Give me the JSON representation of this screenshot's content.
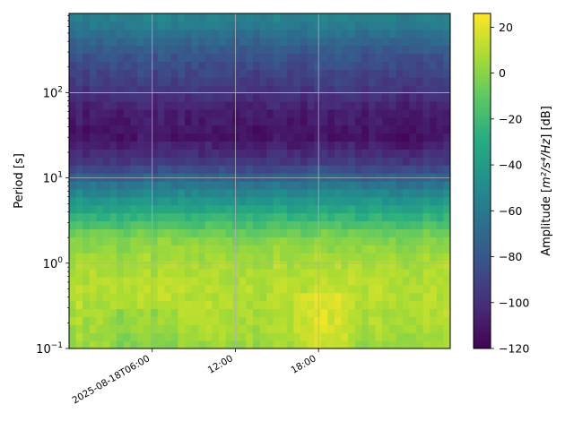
{
  "chart_data": [
    {
      "type": "heatmap",
      "title": "",
      "xlabel": "",
      "ylabel": "Period [s]",
      "y_scale": "log",
      "ylim": [
        0.1,
        850
      ],
      "x_time_range_hours": [
        0,
        27.5
      ],
      "x_ticks": [
        {
          "value": 6,
          "label": "2025-08-18T06:00"
        },
        {
          "value": 12,
          "label": "12:00"
        },
        {
          "value": 18,
          "label": "18:00"
        }
      ],
      "y_ticks": [
        {
          "value": 0.1,
          "base": "10",
          "exp": "−1"
        },
        {
          "value": 1,
          "base": "10",
          "exp": "0"
        },
        {
          "value": 10,
          "base": "10",
          "exp": "1"
        },
        {
          "value": 100,
          "base": "10",
          "exp": "2"
        }
      ],
      "grid": true,
      "colormap": "viridis",
      "colorbar": {
        "label_prefix": "Amplitude [",
        "label_math": "m²/s⁴/Hz",
        "label_suffix": "] [dB]",
        "range": [
          -120,
          26
        ],
        "ticks": [
          "20",
          "0",
          "−20",
          "−40",
          "−60",
          "−80",
          "−100",
          "−120"
        ],
        "tick_values": [
          20,
          0,
          -20,
          -40,
          -60,
          -80,
          -100,
          -120
        ]
      },
      "amplitude_profile_db": [
        {
          "period": 0.1,
          "db": 4
        },
        {
          "period": 0.2,
          "db": 8
        },
        {
          "period": 0.5,
          "db": 10
        },
        {
          "period": 1,
          "db": 8
        },
        {
          "period": 2,
          "db": -2
        },
        {
          "period": 4,
          "db": -30
        },
        {
          "period": 8,
          "db": -60
        },
        {
          "period": 15,
          "db": -95
        },
        {
          "period": 30,
          "db": -112
        },
        {
          "period": 60,
          "db": -108
        },
        {
          "period": 120,
          "db": -95
        },
        {
          "period": 300,
          "db": -80
        },
        {
          "period": 600,
          "db": -60
        },
        {
          "period": 850,
          "db": -55
        }
      ]
    }
  ]
}
